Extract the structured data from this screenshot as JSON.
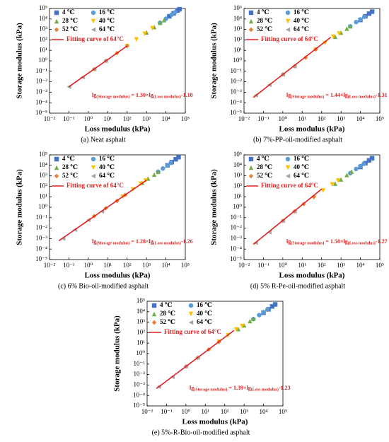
{
  "chart_data": [
    {
      "type": "scatter",
      "caption": "(a) Neat asphalt",
      "xlabel": "Loss modulus (kPa)",
      "ylabel": "Storage modulus (kPa)",
      "log_x": true,
      "log_y": true,
      "legend": "upper left",
      "xlim": [
        0.01,
        100000
      ],
      "ylim": [
        1e-05,
        100000
      ],
      "xticks": [
        {
          "value": 0.01,
          "label": "10⁻²"
        },
        {
          "value": 0.1,
          "label": "10⁻¹"
        },
        {
          "value": 1,
          "label": "10⁰"
        },
        {
          "value": 10,
          "label": "10¹"
        },
        {
          "value": 100,
          "label": "10²"
        },
        {
          "value": 1000,
          "label": "10³"
        },
        {
          "value": 10000,
          "label": "10⁴"
        },
        {
          "value": 100000,
          "label": "10⁵"
        }
      ],
      "yticks": [
        {
          "value": 1e-05,
          "label": "10⁻⁵"
        },
        {
          "value": 0.0001,
          "label": "10⁻⁴"
        },
        {
          "value": 0.001,
          "label": "10⁻³"
        },
        {
          "value": 0.01,
          "label": "10⁻²"
        },
        {
          "value": 0.1,
          "label": "10⁻¹"
        },
        {
          "value": 1,
          "label": "10⁰"
        },
        {
          "value": 10,
          "label": "10¹"
        },
        {
          "value": 100,
          "label": "10²"
        },
        {
          "value": 1000,
          "label": "10³"
        },
        {
          "value": 10000,
          "label": "10⁴"
        },
        {
          "value": 100000,
          "label": "10⁵"
        }
      ],
      "series": [
        {
          "name": "4 ℃",
          "color": "#4472c4",
          "marker": "square",
          "x": [
            15000,
            25000,
            40000,
            50000
          ],
          "values": [
            18000,
            34000,
            64000,
            85000
          ]
        },
        {
          "name": "16 ℃",
          "color": "#5b9bd5",
          "marker": "circle",
          "x": [
            5000,
            10000,
            20000,
            30000
          ],
          "values": [
            4300,
            10500,
            26000,
            44000
          ]
        },
        {
          "name": "28 ℃",
          "color": "#70ad47",
          "marker": "triangle-up",
          "x": [
            1000,
            2500,
            5000,
            8000
          ],
          "values": [
            525,
            1700,
            4300,
            7800
          ]
        },
        {
          "name": "40 ℃",
          "color": "#ffc000",
          "marker": "triangle-down",
          "x": [
            100,
            300,
            800,
            2000
          ],
          "values": [
            26,
            110,
            390,
            1300
          ]
        },
        {
          "name": "52 ℃",
          "color": "#ed7d31",
          "marker": "diamond",
          "x": [
            2,
            8,
            30,
            100
          ],
          "values": [
            0.16,
            1.0,
            5.5,
            26
          ]
        },
        {
          "name": "64 ℃",
          "color": "#a5a5a5",
          "marker": "triangle-left",
          "x": [
            0.1,
            0.5,
            2,
            8
          ],
          "values": [
            0.0033,
            0.027,
            0.16,
            1.0
          ]
        }
      ],
      "fit": {
        "name": "Fitting curve of 64°C",
        "color": "#e02020",
        "slope": 1.3,
        "intercept": -1.18,
        "x": [
          0.1,
          100
        ]
      },
      "equation": [
        "lg",
        "(Storage modulus)",
        " = 1.30×lg",
        "(Loss modulus)",
        "-1.18"
      ]
    },
    {
      "type": "scatter",
      "caption": "(b) 7%-PP-oil-modified asphalt",
      "xlabel": "Loss modulus (kPa)",
      "ylabel": "Storage modulus (kPa)",
      "log_x": true,
      "log_y": true,
      "legend": "upper left",
      "xlim": [
        0.01,
        100000
      ],
      "ylim": [
        1e-05,
        100000
      ],
      "xticks": [
        {
          "value": 0.01,
          "label": "10⁻²"
        },
        {
          "value": 0.1,
          "label": "10⁻¹"
        },
        {
          "value": 1,
          "label": "10⁰"
        },
        {
          "value": 10,
          "label": "10¹"
        },
        {
          "value": 100,
          "label": "10²"
        },
        {
          "value": 1000,
          "label": "10³"
        },
        {
          "value": 10000,
          "label": "10⁴"
        },
        {
          "value": 100000,
          "label": "10⁵"
        }
      ],
      "yticks": [
        {
          "value": 1e-05,
          "label": "10⁻⁵"
        },
        {
          "value": 0.0001,
          "label": "10⁻⁴"
        },
        {
          "value": 0.001,
          "label": "10⁻³"
        },
        {
          "value": 0.01,
          "label": "10⁻²"
        },
        {
          "value": 0.1,
          "label": "10⁻¹"
        },
        {
          "value": 1,
          "label": "10⁰"
        },
        {
          "value": 10,
          "label": "10¹"
        },
        {
          "value": 100,
          "label": "10²"
        },
        {
          "value": 1000,
          "label": "10³"
        },
        {
          "value": 10000,
          "label": "10⁴"
        },
        {
          "value": 100000,
          "label": "10⁵"
        }
      ],
      "series": [
        {
          "name": "4 ℃",
          "color": "#4472c4",
          "marker": "square",
          "x": [
            10000,
            18000,
            28000,
            40000
          ],
          "values": [
            8000,
            18000,
            32000,
            50000
          ]
        },
        {
          "name": "16 ℃",
          "color": "#5b9bd5",
          "marker": "circle",
          "x": [
            3000,
            6000,
            10000,
            16000
          ],
          "values": [
            2000,
            5000,
            9000,
            16000
          ]
        },
        {
          "name": "28 ℃",
          "color": "#70ad47",
          "marker": "triangle-up",
          "x": [
            500,
            1000,
            2000,
            3000
          ],
          "values": [
            200,
            500,
            1200,
            2000
          ]
        },
        {
          "name": "40 ℃",
          "color": "#ffc000",
          "marker": "triangle-down",
          "x": [
            50,
            150,
            400,
            800
          ],
          "values": [
            12,
            50,
            200,
            400
          ]
        },
        {
          "name": "52 ℃",
          "color": "#ed7d31",
          "marker": "diamond",
          "x": [
            1,
            4,
            15,
            50
          ],
          "values": [
            0.05,
            0.3,
            2,
            12
          ]
        },
        {
          "name": "64 ℃",
          "color": "#a5a5a5",
          "marker": "triangle-left",
          "x": [
            0.04,
            0.2,
            1,
            4
          ],
          "values": [
            0.0005,
            0.005,
            0.05,
            0.3
          ]
        }
      ],
      "fit": {
        "name": "Fitting curve of 64°C",
        "color": "#e02020",
        "slope": 1.44,
        "intercept": -1.31,
        "x": [
          0.03,
          300
        ]
      },
      "equation": [
        "lg",
        "(Storage modulus)",
        " = 1.44×lg",
        "(Loss modulus)",
        "-1.31"
      ]
    },
    {
      "type": "scatter",
      "caption": "(c) 6% Bio-oil-modified asphalt",
      "xlabel": "Loss modulus (kPa)",
      "ylabel": "Storage modulus (kPa)",
      "log_x": true,
      "log_y": true,
      "legend": "upper left",
      "xlim": [
        0.01,
        100000
      ],
      "ylim": [
        1e-05,
        100000
      ],
      "xticks": [
        {
          "value": 0.01,
          "label": "10⁻²"
        },
        {
          "value": 0.1,
          "label": "10⁻¹"
        },
        {
          "value": 1,
          "label": "10⁰"
        },
        {
          "value": 10,
          "label": "10¹"
        },
        {
          "value": 100,
          "label": "10²"
        },
        {
          "value": 1000,
          "label": "10³"
        },
        {
          "value": 10000,
          "label": "10⁴"
        },
        {
          "value": 100000,
          "label": "10⁵"
        }
      ],
      "yticks": [
        {
          "value": 1e-05,
          "label": "10⁻⁵"
        },
        {
          "value": 0.0001,
          "label": "10⁻⁴"
        },
        {
          "value": 0.001,
          "label": "10⁻³"
        },
        {
          "value": 0.01,
          "label": "10⁻²"
        },
        {
          "value": 0.1,
          "label": "10⁻¹"
        },
        {
          "value": 1,
          "label": "10⁰"
        },
        {
          "value": 10,
          "label": "10¹"
        },
        {
          "value": 100,
          "label": "10²"
        },
        {
          "value": 1000,
          "label": "10³"
        },
        {
          "value": 10000,
          "label": "10⁴"
        },
        {
          "value": 100000,
          "label": "10⁵"
        }
      ],
      "series": [
        {
          "name": "4 ℃",
          "color": "#4472c4",
          "marker": "square",
          "x": [
            12000,
            20000,
            32000,
            45000
          ],
          "values": [
            10000,
            20000,
            38000,
            60000
          ]
        },
        {
          "name": "16 ℃",
          "color": "#5b9bd5",
          "marker": "circle",
          "x": [
            4000,
            7000,
            12000,
            18000
          ],
          "values": [
            2500,
            5000,
            10000,
            17000
          ]
        },
        {
          "name": "28 ℃",
          "color": "#70ad47",
          "marker": "triangle-up",
          "x": [
            600,
            1200,
            2500,
            4000
          ],
          "values": [
            220,
            550,
            1300,
            2400
          ]
        },
        {
          "name": "40 ℃",
          "color": "#ffc000",
          "marker": "triangle-down",
          "x": [
            60,
            200,
            500,
            900
          ],
          "values": [
            10,
            50,
            170,
            350
          ]
        },
        {
          "name": "52 ℃",
          "color": "#ed7d31",
          "marker": "diamond",
          "x": [
            2,
            8,
            30,
            80
          ],
          "values": [
            0.14,
            0.8,
            4,
            15
          ]
        },
        {
          "name": "64 ℃",
          "color": "#a5a5a5",
          "marker": "triangle-left",
          "x": [
            0.05,
            0.2,
            1,
            5
          ],
          "values": [
            0.001,
            0.007,
            0.06,
            0.4
          ]
        }
      ],
      "fit": {
        "name": "Fitting curve of 64°C",
        "color": "#e02020",
        "slope": 1.28,
        "intercept": -1.26,
        "x": [
          0.03,
          1000
        ]
      },
      "equation": [
        "lg",
        "(Storage modulus)",
        " = 1.28×lg",
        "(Loss modulus)",
        "-1.26"
      ]
    },
    {
      "type": "scatter",
      "caption": "(d) 5% R-Pe-oil-modified asphalt",
      "xlabel": "Loss modulus (kPa)",
      "ylabel": "Storage modulus (kPa)",
      "log_x": true,
      "log_y": true,
      "legend": "upper left",
      "xlim": [
        0.01,
        100000
      ],
      "ylim": [
        1e-05,
        100000
      ],
      "xticks": [
        {
          "value": 0.01,
          "label": "10⁻²"
        },
        {
          "value": 0.1,
          "label": "10⁻¹"
        },
        {
          "value": 1,
          "label": "10⁰"
        },
        {
          "value": 10,
          "label": "10¹"
        },
        {
          "value": 100,
          "label": "10²"
        },
        {
          "value": 1000,
          "label": "10³"
        },
        {
          "value": 10000,
          "label": "10⁴"
        },
        {
          "value": 100000,
          "label": "10⁵"
        }
      ],
      "yticks": [
        {
          "value": 1e-05,
          "label": "10⁻⁵"
        },
        {
          "value": 0.0001,
          "label": "10⁻⁴"
        },
        {
          "value": 0.001,
          "label": "10⁻³"
        },
        {
          "value": 0.01,
          "label": "10⁻²"
        },
        {
          "value": 0.1,
          "label": "10⁻¹"
        },
        {
          "value": 1,
          "label": "10⁰"
        },
        {
          "value": 10,
          "label": "10¹"
        },
        {
          "value": 100,
          "label": "10²"
        },
        {
          "value": 1000,
          "label": "10³"
        },
        {
          "value": 10000,
          "label": "10⁴"
        },
        {
          "value": 100000,
          "label": "10⁵"
        }
      ],
      "series": [
        {
          "name": "4 ℃",
          "color": "#4472c4",
          "marker": "square",
          "x": [
            10000,
            18000,
            28000,
            40000
          ],
          "values": [
            7000,
            16000,
            30000,
            48000
          ]
        },
        {
          "name": "16 ℃",
          "color": "#5b9bd5",
          "marker": "circle",
          "x": [
            3000,
            6000,
            10000,
            15000
          ],
          "values": [
            1800,
            4500,
            8500,
            14000
          ]
        },
        {
          "name": "28 ℃",
          "color": "#70ad47",
          "marker": "triangle-up",
          "x": [
            500,
            1000,
            2000,
            3500
          ],
          "values": [
            180,
            450,
            1200,
            2500
          ]
        },
        {
          "name": "40 ℃",
          "color": "#ffc000",
          "marker": "triangle-down",
          "x": [
            40,
            120,
            350,
            700
          ],
          "values": [
            8,
            40,
            150,
            350
          ]
        },
        {
          "name": "52 ℃",
          "color": "#ed7d31",
          "marker": "diamond",
          "x": [
            1,
            4,
            12,
            40
          ],
          "values": [
            0.05,
            0.4,
            2,
            10
          ]
        },
        {
          "name": "64 ℃",
          "color": "#a5a5a5",
          "marker": "triangle-left",
          "x": [
            0.04,
            0.2,
            1,
            4
          ],
          "values": [
            0.0004,
            0.004,
            0.05,
            0.4
          ]
        }
      ],
      "fit": {
        "name": "Fitting curve of 64°C",
        "color": "#e02020",
        "slope": 1.5,
        "intercept": -1.27,
        "x": [
          0.03,
          100
        ]
      },
      "equation": [
        "lg",
        "(Storage modulus)",
        " = 1.50×lg",
        "(Loss modulus)",
        "-1.27"
      ]
    },
    {
      "type": "scatter",
      "caption": "(e) 5%-R-Bio-oil-modified asphalt",
      "xlabel": "Loss modulus (kPa)",
      "ylabel": "Storage modulus (kPa)",
      "log_x": true,
      "log_y": true,
      "legend": "upper left",
      "xlim": [
        0.01,
        100000
      ],
      "ylim": [
        1e-05,
        100000
      ],
      "xticks": [
        {
          "value": 0.01,
          "label": "10⁻²"
        },
        {
          "value": 0.1,
          "label": "10⁻¹"
        },
        {
          "value": 1,
          "label": "10⁰"
        },
        {
          "value": 10,
          "label": "10¹"
        },
        {
          "value": 100,
          "label": "10²"
        },
        {
          "value": 1000,
          "label": "10³"
        },
        {
          "value": 10000,
          "label": "10⁴"
        },
        {
          "value": 100000,
          "label": "10⁵"
        }
      ],
      "yticks": [
        {
          "value": 1e-05,
          "label": "10⁻⁵"
        },
        {
          "value": 0.0001,
          "label": "10⁻⁴"
        },
        {
          "value": 0.001,
          "label": "10⁻³"
        },
        {
          "value": 0.01,
          "label": "10⁻²"
        },
        {
          "value": 0.1,
          "label": "10⁻¹"
        },
        {
          "value": 1,
          "label": "10⁰"
        },
        {
          "value": 10,
          "label": "10¹"
        },
        {
          "value": 100,
          "label": "10²"
        },
        {
          "value": 1000,
          "label": "10³"
        },
        {
          "value": 10000,
          "label": "10⁴"
        },
        {
          "value": 100000,
          "label": "10⁵"
        }
      ],
      "series": [
        {
          "name": "4 ℃",
          "color": "#4472c4",
          "marker": "square",
          "x": [
            10000,
            18000,
            28000,
            40000
          ],
          "values": [
            8000,
            17000,
            32000,
            50000
          ]
        },
        {
          "name": "16 ℃",
          "color": "#5b9bd5",
          "marker": "circle",
          "x": [
            3000,
            6000,
            10000,
            16000
          ],
          "values": [
            2000,
            4800,
            9000,
            16000
          ]
        },
        {
          "name": "28 ℃",
          "color": "#70ad47",
          "marker": "triangle-up",
          "x": [
            500,
            1000,
            2000,
            3000
          ],
          "values": [
            220,
            500,
            1300,
            2200
          ]
        },
        {
          "name": "40 ℃",
          "color": "#ffc000",
          "marker": "triangle-down",
          "x": [
            50,
            150,
            400,
            800
          ],
          "values": [
            14,
            55,
            200,
            420
          ]
        },
        {
          "name": "52 ℃",
          "color": "#ed7d31",
          "marker": "diamond",
          "x": [
            1,
            4,
            15,
            50
          ],
          "values": [
            0.06,
            0.4,
            2.5,
            13
          ]
        },
        {
          "name": "64 ℃",
          "color": "#a5a5a5",
          "marker": "triangle-left",
          "x": [
            0.04,
            0.2,
            1,
            4
          ],
          "values": [
            0.0007,
            0.006,
            0.06,
            0.4
          ]
        }
      ],
      "fit": {
        "name": "Fitting curve of 64°C",
        "color": "#e02020",
        "slope": 1.39,
        "intercept": -1.23,
        "x": [
          0.03,
          300
        ]
      },
      "equation": [
        "lg",
        "(Storage modulus)",
        " = 1.39×lg",
        "(Loss modulus)",
        "-1.23"
      ]
    }
  ]
}
